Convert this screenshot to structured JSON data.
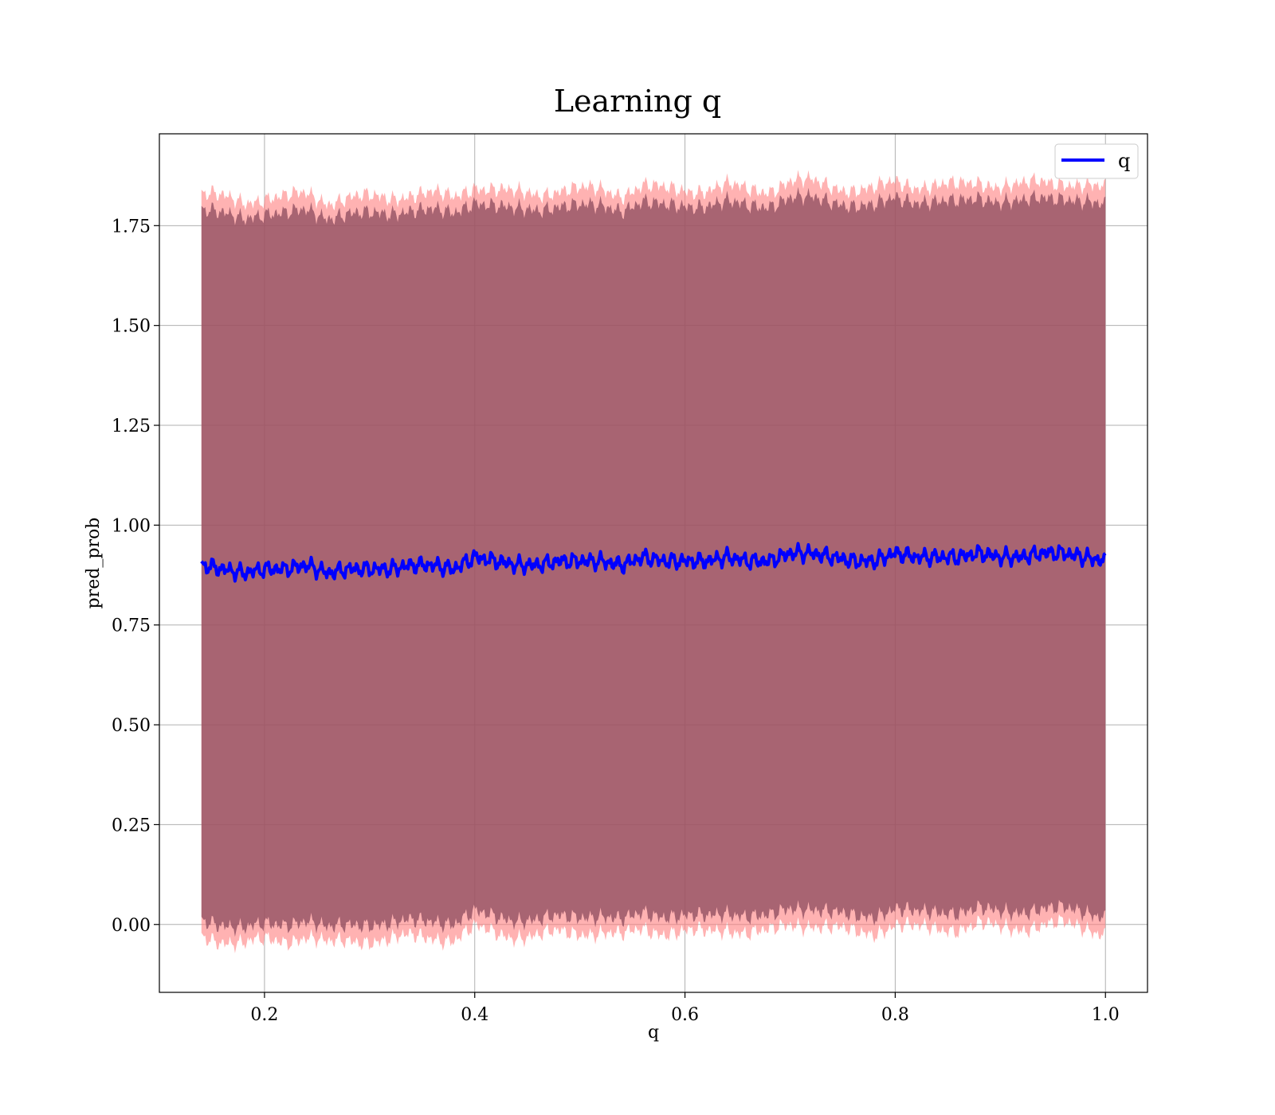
{
  "chart_data": {
    "type": "line",
    "title": "Learning q",
    "xlabel": "q",
    "ylabel": "pred_prob",
    "xlim": [
      0.1,
      1.04
    ],
    "ylim": [
      -0.17,
      1.98
    ],
    "x_ticks": [
      "0.2",
      "0.4",
      "0.6",
      "0.8",
      "1.0"
    ],
    "x_tick_values": [
      0.2,
      0.4,
      0.6,
      0.8,
      1.0
    ],
    "y_ticks": [
      "0.00",
      "0.25",
      "0.50",
      "0.75",
      "1.00",
      "1.25",
      "1.50",
      "1.75"
    ],
    "y_tick_values": [
      0.0,
      0.25,
      0.5,
      0.75,
      1.0,
      1.25,
      1.5,
      1.75
    ],
    "grid": true,
    "legend": {
      "position": "top-right",
      "entries": [
        "q"
      ]
    },
    "colors": {
      "line": "#0000ff",
      "outer_band": "#ff7f7f",
      "inner_band": "#8b4a5c"
    },
    "series": [
      {
        "name": "q",
        "x": [
          0.14,
          0.16,
          0.18,
          0.2,
          0.22,
          0.24,
          0.26,
          0.28,
          0.3,
          0.32,
          0.34,
          0.36,
          0.38,
          0.4,
          0.42,
          0.44,
          0.46,
          0.48,
          0.5,
          0.52,
          0.54,
          0.56,
          0.58,
          0.6,
          0.62,
          0.64,
          0.66,
          0.68,
          0.7,
          0.72,
          0.74,
          0.76,
          0.78,
          0.8,
          0.82,
          0.84,
          0.86,
          0.88,
          0.9,
          0.92,
          0.94,
          0.96,
          0.98,
          1.0
        ],
        "y": [
          0.9,
          0.89,
          0.88,
          0.89,
          0.89,
          0.9,
          0.88,
          0.89,
          0.89,
          0.89,
          0.9,
          0.9,
          0.89,
          0.92,
          0.91,
          0.9,
          0.9,
          0.91,
          0.91,
          0.91,
          0.9,
          0.92,
          0.91,
          0.91,
          0.91,
          0.92,
          0.91,
          0.91,
          0.93,
          0.93,
          0.92,
          0.91,
          0.91,
          0.93,
          0.92,
          0.92,
          0.92,
          0.93,
          0.92,
          0.92,
          0.93,
          0.93,
          0.92,
          0.91
        ]
      }
    ],
    "bands": [
      {
        "upper": 1.83,
        "lower": -0.03
      },
      {
        "upper": 1.79,
        "lower": 0.01
      }
    ]
  }
}
